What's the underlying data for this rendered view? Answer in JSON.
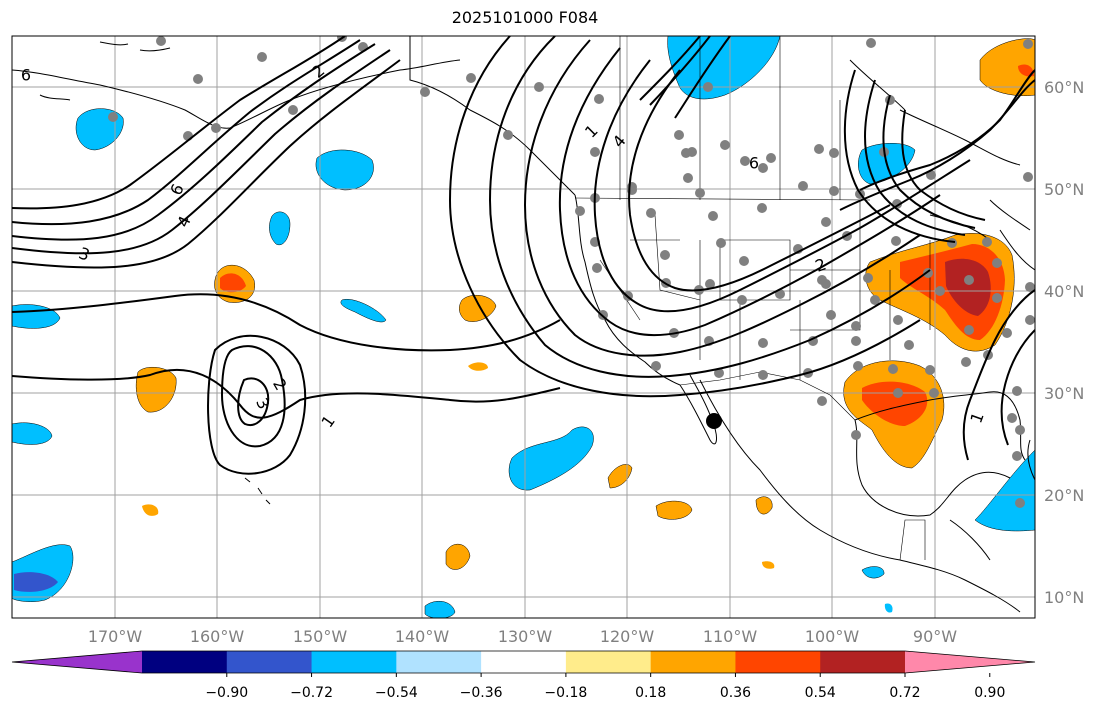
{
  "title": "2025101000 F084",
  "lat_labels": [
    "10°N",
    "20°N",
    "30°N",
    "40°N",
    "50°N",
    "60°N"
  ],
  "lon_labels": [
    "170°W",
    "160°W",
    "150°W",
    "140°W",
    "130°W",
    "120°W",
    "110°W",
    "100°W",
    "90°W"
  ],
  "colorbar": {
    "ticks": [
      "−0.90",
      "−0.72",
      "−0.54",
      "−0.36",
      "−0.18",
      "0.18",
      "0.36",
      "0.54",
      "0.72",
      "0.90"
    ],
    "colors": [
      "#9933cc",
      "#000080",
      "#3355cc",
      "#00bfff",
      "#b0e2ff",
      "#ffffff",
      "#ffec8b",
      "#ffa500",
      "#ff4500",
      "#b22222",
      "#ff88aa"
    ]
  },
  "contour_labels": [
    "6",
    "6",
    "4",
    "3",
    "2",
    "3",
    "2",
    "1",
    "1",
    "4",
    "6",
    "2",
    "1"
  ],
  "colors": {
    "neg_light": "#b0e2ff",
    "neg_mid": "#00bfff",
    "neg_dark": "#3355cc",
    "pos_light": "#ffec8b",
    "pos_mid": "#ffa500",
    "pos_strong": "#ff4500",
    "pos_dark": "#b22222",
    "grid": "#a0a0a0",
    "station": "#808080"
  }
}
